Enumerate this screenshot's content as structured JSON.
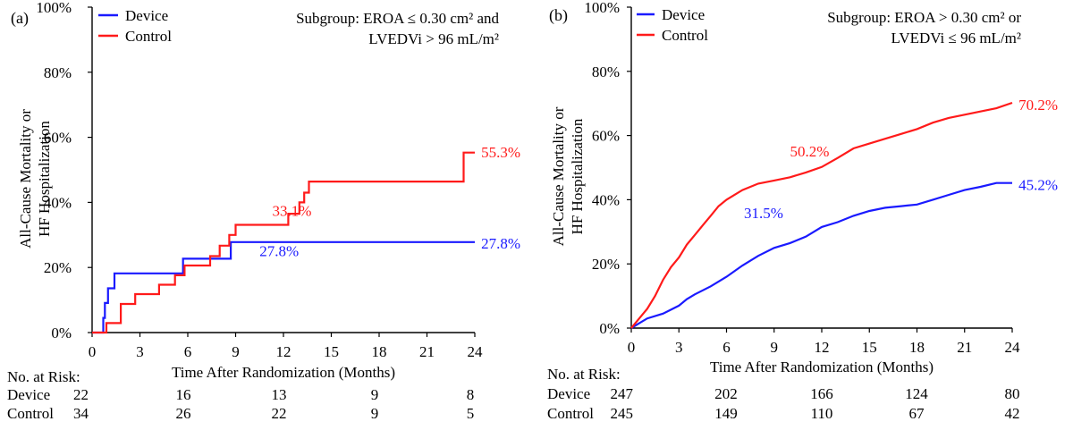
{
  "chart_data": [
    {
      "type": "line",
      "panel_label": "(a)",
      "subgroup": [
        "Subgroup:  EROA ≤ 0.30 cm² and",
        "LVEDVi > 96 mL/m²"
      ],
      "ylabel": [
        "All-Cause Mortality or",
        "HF Hospitalization"
      ],
      "xlabel": "Time After Randomization (Months)",
      "xlim": [
        0,
        24
      ],
      "ylim": [
        0,
        100
      ],
      "x_ticks": [
        0,
        3,
        6,
        9,
        12,
        15,
        18,
        21,
        24
      ],
      "y_ticks": [
        0,
        20,
        40,
        60,
        80,
        100
      ],
      "y_tick_labels": [
        "0%",
        "20%",
        "40%",
        "60%",
        "80%",
        "100%"
      ],
      "legend": "top-left",
      "series": [
        {
          "name": "Device",
          "color": "#1a1aff",
          "step": true,
          "points": [
            [
              0,
              0
            ],
            [
              0.7,
              0
            ],
            [
              0.7,
              4.5
            ],
            [
              0.8,
              4.5
            ],
            [
              0.8,
              9.1
            ],
            [
              1.0,
              9.1
            ],
            [
              1.0,
              13.6
            ],
            [
              1.4,
              13.6
            ],
            [
              1.4,
              18.2
            ],
            [
              5.7,
              18.2
            ],
            [
              5.7,
              22.7
            ],
            [
              8.7,
              22.7
            ],
            [
              8.7,
              27.8
            ],
            [
              24,
              27.8
            ]
          ]
        },
        {
          "name": "Control",
          "color": "#ff1a1a",
          "step": true,
          "points": [
            [
              0,
              0
            ],
            [
              0.9,
              0
            ],
            [
              0.9,
              2.9
            ],
            [
              1.8,
              2.9
            ],
            [
              1.8,
              8.8
            ],
            [
              2.7,
              8.8
            ],
            [
              2.7,
              11.8
            ],
            [
              4.2,
              11.8
            ],
            [
              4.2,
              14.7
            ],
            [
              5.2,
              14.7
            ],
            [
              5.2,
              17.6
            ],
            [
              5.8,
              17.6
            ],
            [
              5.8,
              20.6
            ],
            [
              7.4,
              20.6
            ],
            [
              7.4,
              23.5
            ],
            [
              8.0,
              23.5
            ],
            [
              8.0,
              26.7
            ],
            [
              8.6,
              26.7
            ],
            [
              8.6,
              30.0
            ],
            [
              9.0,
              30.0
            ],
            [
              9.0,
              33.1
            ],
            [
              12.3,
              33.1
            ],
            [
              12.3,
              36.5
            ],
            [
              13.0,
              36.5
            ],
            [
              13.0,
              40.0
            ],
            [
              13.3,
              40.0
            ],
            [
              13.3,
              43.0
            ],
            [
              13.6,
              43.0
            ],
            [
              13.6,
              46.4
            ],
            [
              23.3,
              46.4
            ],
            [
              23.3,
              55.3
            ],
            [
              24,
              55.3
            ]
          ]
        }
      ],
      "annotations": [
        {
          "text": "33.1%",
          "color": "#ff1a1a",
          "x": 11.3,
          "y": 35.8
        },
        {
          "text": "55.3%",
          "color": "#ff1a1a",
          "x": 24.4,
          "y": 53.8
        },
        {
          "text": "27.8%",
          "color": "#1a1aff",
          "x": 10.5,
          "y": 23.5
        },
        {
          "text": "27.8%",
          "color": "#1a1aff",
          "x": 24.4,
          "y": 25.8
        }
      ],
      "at_risk": {
        "label": "No. at Risk:",
        "times": [
          0,
          6,
          12,
          18,
          24
        ],
        "rows": [
          {
            "name": "Device",
            "values": [
              "22",
              "16",
              "13",
              "9",
              "8"
            ]
          },
          {
            "name": "Control",
            "values": [
              "34",
              "26",
              "22",
              "9",
              "5"
            ]
          }
        ]
      }
    },
    {
      "type": "line",
      "panel_label": "(b)",
      "subgroup": [
        "Subgroup:  EROA > 0.30 cm² or",
        "LVEDVi ≤ 96 mL/m²"
      ],
      "ylabel": [
        "All-Cause Mortality or",
        "HF Hospitalization"
      ],
      "xlabel": "Time After Randomization (Months)",
      "xlim": [
        0,
        24
      ],
      "ylim": [
        0,
        100
      ],
      "x_ticks": [
        0,
        3,
        6,
        9,
        12,
        15,
        18,
        21,
        24
      ],
      "y_ticks": [
        0,
        20,
        40,
        60,
        80,
        100
      ],
      "y_tick_labels": [
        "0%",
        "20%",
        "40%",
        "60%",
        "80%",
        "100%"
      ],
      "legend": "top-left",
      "series": [
        {
          "name": "Device",
          "color": "#1a1aff",
          "step": false,
          "points": [
            [
              0,
              0
            ],
            [
              0.5,
              1.5
            ],
            [
              1,
              3
            ],
            [
              2,
              4.5
            ],
            [
              3,
              7
            ],
            [
              3.5,
              9
            ],
            [
              4,
              10.5
            ],
            [
              5,
              13
            ],
            [
              6,
              16
            ],
            [
              7,
              19.5
            ],
            [
              8,
              22.5
            ],
            [
              9,
              25
            ],
            [
              10,
              26.5
            ],
            [
              11,
              28.5
            ],
            [
              12,
              31.5
            ],
            [
              13,
              33
            ],
            [
              14,
              35
            ],
            [
              15,
              36.5
            ],
            [
              16,
              37.5
            ],
            [
              17,
              38
            ],
            [
              18,
              38.5
            ],
            [
              19,
              40
            ],
            [
              20,
              41.5
            ],
            [
              21,
              43
            ],
            [
              22,
              44
            ],
            [
              23,
              45.2
            ],
            [
              24,
              45.2
            ]
          ]
        },
        {
          "name": "Control",
          "color": "#ff1a1a",
          "step": false,
          "points": [
            [
              0,
              0
            ],
            [
              0.5,
              3
            ],
            [
              1,
              6
            ],
            [
              1.5,
              10
            ],
            [
              2,
              15
            ],
            [
              2.5,
              19
            ],
            [
              3,
              22
            ],
            [
              3.5,
              26
            ],
            [
              4,
              29
            ],
            [
              4.5,
              32
            ],
            [
              5,
              35
            ],
            [
              5.5,
              38
            ],
            [
              6,
              40
            ],
            [
              7,
              43
            ],
            [
              8,
              45
            ],
            [
              9,
              46
            ],
            [
              10,
              47
            ],
            [
              11,
              48.5
            ],
            [
              12,
              50.2
            ],
            [
              13,
              53
            ],
            [
              14,
              56
            ],
            [
              15,
              57.5
            ],
            [
              16,
              59
            ],
            [
              17,
              60.5
            ],
            [
              18,
              62
            ],
            [
              19,
              64
            ],
            [
              20,
              65.5
            ],
            [
              21,
              66.5
            ],
            [
              22,
              67.5
            ],
            [
              23,
              68.5
            ],
            [
              24,
              70.2
            ]
          ]
        }
      ],
      "annotations": [
        {
          "text": "50.2%",
          "color": "#ff1a1a",
          "x": 10.0,
          "y": 53.5
        },
        {
          "text": "70.2%",
          "color": "#ff1a1a",
          "x": 24.4,
          "y": 68.0
        },
        {
          "text": "31.5%",
          "color": "#1a1aff",
          "x": 7.1,
          "y": 34.3
        },
        {
          "text": "45.2%",
          "color": "#1a1aff",
          "x": 24.4,
          "y": 43.0
        }
      ],
      "at_risk": {
        "label": "No. at Risk:",
        "times": [
          0,
          6,
          12,
          18,
          24
        ],
        "rows": [
          {
            "name": "Device",
            "values": [
              "247",
              "202",
              "166",
              "124",
              "80"
            ]
          },
          {
            "name": "Control",
            "values": [
              "245",
              "149",
              "110",
              "67",
              "42"
            ]
          }
        ]
      }
    }
  ]
}
